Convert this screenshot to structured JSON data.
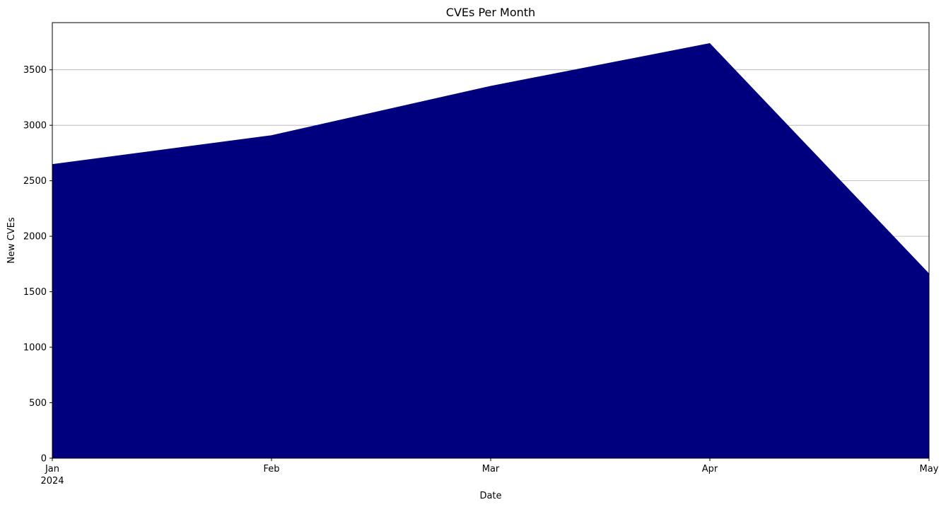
{
  "chart_data": {
    "type": "area",
    "title": "CVEs Per Month",
    "xlabel": "Date",
    "ylabel": "New CVEs",
    "x": [
      "2024-01",
      "2024-02",
      "2024-03",
      "2024-04",
      "2024-05"
    ],
    "x_tick_labels": [
      "Jan",
      "Feb",
      "Mar",
      "Apr",
      "May"
    ],
    "x_tick_sublabels": [
      "2024",
      "",
      "",
      "",
      ""
    ],
    "series": [
      {
        "values": [
          2650,
          2910,
          3355,
          3740,
          1665
        ]
      }
    ],
    "ylim": [
      0,
      3925
    ],
    "yticks": [
      0,
      500,
      1000,
      1500,
      2000,
      2500,
      3000,
      3500
    ],
    "grid": "horizontal",
    "fill_color": "#00007f",
    "grid_color": "#b0b0b0"
  }
}
